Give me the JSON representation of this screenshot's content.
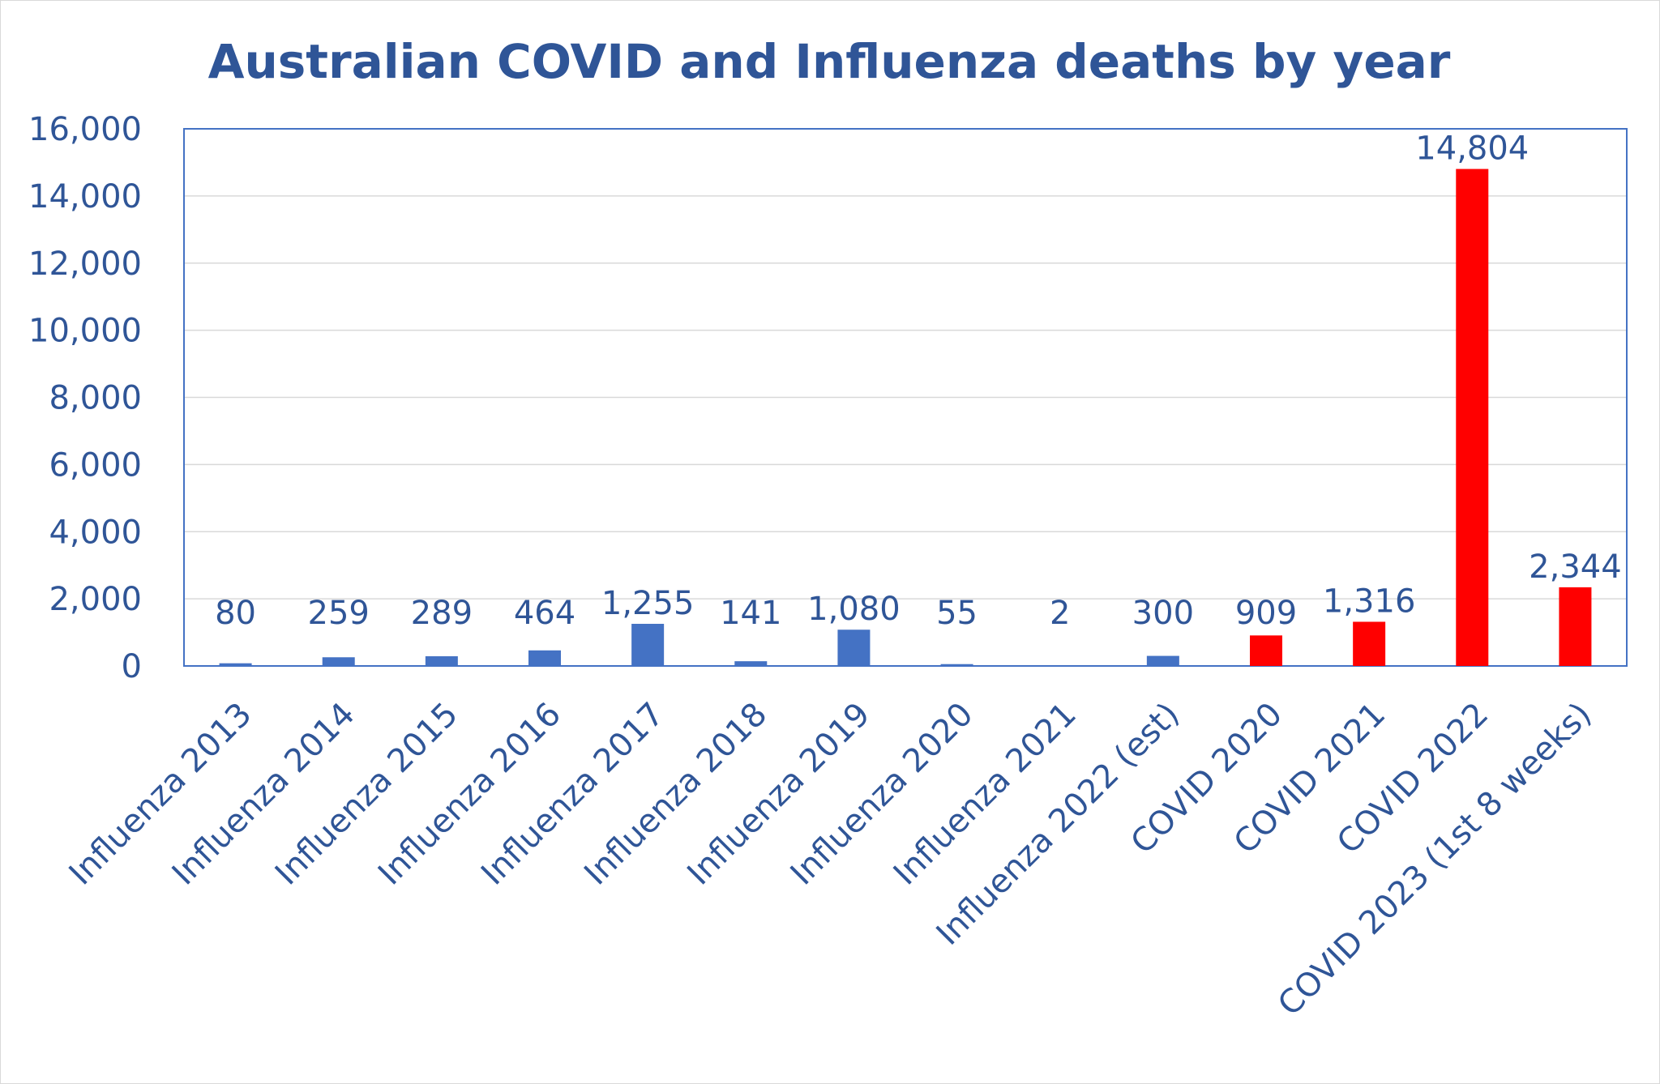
{
  "chart_data": {
    "type": "bar",
    "title": "Australian COVID and Influenza deaths by year",
    "xlabel": "",
    "ylabel": "",
    "ylim": [
      0,
      16000
    ],
    "yticks": [
      "0",
      "2,000",
      "4,000",
      "6,000",
      "8,000",
      "10,000",
      "12,000",
      "14,000",
      "16,000"
    ],
    "grid": true,
    "categories": [
      "Influenza 2013",
      "Influenza 2014",
      "Influenza 2015",
      "Influenza 2016",
      "Influenza 2017",
      "Influenza 2018",
      "Influenza 2019",
      "Influenza 2020",
      "Influenza 2021",
      "Influenza 2022 (est)",
      "COVID 2020",
      "COVID 2021",
      "COVID 2022",
      "COVID 2023 (1st 8 weeks)"
    ],
    "values": [
      80,
      259,
      289,
      464,
      1255,
      141,
      1080,
      55,
      2,
      300,
      909,
      1316,
      14804,
      2344
    ],
    "data_labels": [
      "80",
      "259",
      "289",
      "464",
      "1,255",
      "141",
      "1,080",
      "55",
      "2",
      "300",
      "909",
      "1,316",
      "14,804",
      "2,344"
    ],
    "bar_colors": [
      "#4472c4",
      "#4472c4",
      "#4472c4",
      "#4472c4",
      "#4472c4",
      "#4472c4",
      "#4472c4",
      "#4472c4",
      "#4472c4",
      "#4472c4",
      "#ff0000",
      "#ff0000",
      "#ff0000",
      "#ff0000"
    ],
    "text_color": "#2f5597",
    "gridline_color": "#d9d9d9",
    "plot_border_color": "#4472c4"
  }
}
